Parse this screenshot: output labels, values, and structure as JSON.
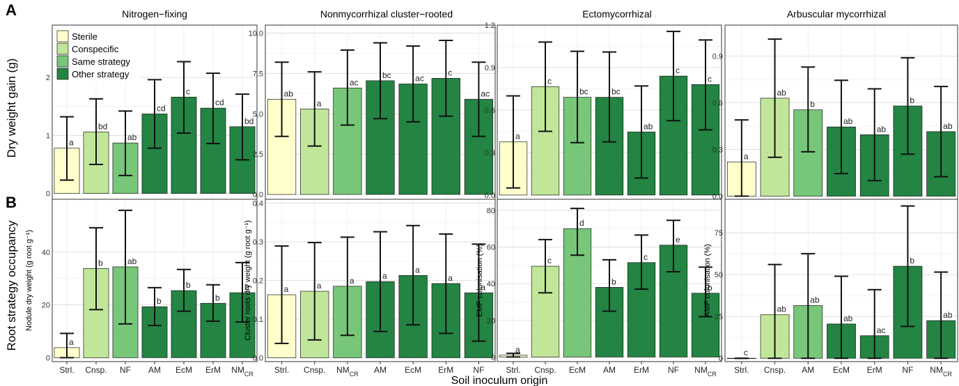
{
  "panel_labels": [
    "A",
    "B"
  ],
  "row_labels": [
    "Dry weight gain (g)",
    "Root strategy occupancy"
  ],
  "x_title": "Soil inoculum origin",
  "legend": {
    "items": [
      {
        "label": "Sterile",
        "color": "#ffffcc"
      },
      {
        "label": "Conspecific",
        "color": "#c2e699"
      },
      {
        "label": "Same strategy",
        "color": "#78c679"
      },
      {
        "label": "Other strategy",
        "color": "#238443"
      }
    ]
  },
  "colors": {
    "Sterile": "#ffffcc",
    "Conspecific": "#c2e699",
    "Same strategy": "#78c679",
    "Other strategy": "#238443"
  },
  "columns": [
    "Nitrogen−fixing",
    "Nonmycorrhizal cluster−rooted",
    "Ectomycorrhizal",
    "Arbuscular mycorrhizal"
  ],
  "chart_data": [
    {
      "type": "bar",
      "panel": "A",
      "title": "Nitrogen−fixing",
      "ylabel": "",
      "categories": [
        "Strl.",
        "Cnsp.",
        "NF",
        "AM",
        "EcM",
        "ErM",
        "NMCR"
      ],
      "values": [
        0.78,
        1.06,
        0.87,
        1.37,
        1.66,
        1.47,
        1.15
      ],
      "err_low": [
        0.23,
        0.5,
        0.31,
        0.78,
        1.04,
        0.86,
        0.58
      ],
      "err_high": [
        1.32,
        1.63,
        1.42,
        1.96,
        2.27,
        2.07,
        1.71
      ],
      "sig": [
        "a",
        "bd",
        "ab",
        "cd",
        "c",
        "cd",
        "bd"
      ],
      "groups": [
        "Sterile",
        "Conspecific",
        "Same strategy",
        "Other strategy",
        "Other strategy",
        "Other strategy",
        "Other strategy"
      ],
      "yticks": [
        "0",
        "1",
        "2"
      ],
      "ytick_values": [
        0,
        1,
        2
      ],
      "ylim": [
        -0.1,
        2.9
      ]
    },
    {
      "type": "bar",
      "panel": "A",
      "title": "Nonmycorrhizal cluster−rooted",
      "ylabel": "",
      "categories": [
        "Strl.",
        "Cnsp.",
        "NMCR",
        "AM",
        "EcM",
        "ErM",
        "NF"
      ],
      "values": [
        5.9,
        5.3,
        6.6,
        7.05,
        6.85,
        7.2,
        5.9
      ],
      "err_low": [
        3.6,
        3.0,
        4.3,
        4.7,
        4.5,
        4.85,
        3.6
      ],
      "err_high": [
        8.2,
        7.6,
        8.95,
        9.4,
        9.2,
        9.55,
        8.2
      ],
      "sig": [
        "ab",
        "a",
        "ac",
        "bc",
        "ac",
        "c",
        "ac"
      ],
      "groups": [
        "Sterile",
        "Conspecific",
        "Same strategy",
        "Other strategy",
        "Other strategy",
        "Other strategy",
        "Other strategy"
      ],
      "yticks": [
        "0.0",
        "2.5",
        "5.0",
        "7.5",
        "10.0"
      ],
      "ytick_values": [
        0,
        2.5,
        5,
        7.5,
        10
      ],
      "ylim": [
        -0.3,
        10.5
      ]
    },
    {
      "type": "bar",
      "panel": "A",
      "title": "Ectomycorrhizal",
      "ylabel": "",
      "categories": [
        "Strl.",
        "Cnsp.",
        "EcM",
        "AM",
        "ErM",
        "NF",
        "NMCR"
      ],
      "values": [
        0.375,
        0.765,
        0.69,
        0.69,
        0.445,
        0.84,
        0.78
      ],
      "err_low": [
        0.05,
        0.45,
        0.37,
        0.375,
        0.12,
        0.525,
        0.46
      ],
      "err_high": [
        0.7,
        1.08,
        1.015,
        1.01,
        0.77,
        1.155,
        1.095
      ],
      "sig": [
        "a",
        "c",
        "bc",
        "bc",
        "ab",
        "c",
        "c"
      ],
      "groups": [
        "Sterile",
        "Conspecific",
        "Same strategy",
        "Other strategy",
        "Other strategy",
        "Other strategy",
        "Other strategy"
      ],
      "yticks": [
        "0.0",
        "0.3",
        "0.6",
        "0.9",
        "1.2"
      ],
      "ytick_values": [
        0,
        0.3,
        0.6,
        0.9,
        1.2
      ],
      "ylim": [
        -0.03,
        1.2
      ]
    },
    {
      "type": "bar",
      "panel": "A",
      "title": "Arbuscular mycorrhizal",
      "ylabel": "",
      "categories": [
        "Strl.",
        "Cnsp.",
        "AM",
        "EcM",
        "ErM",
        "NF",
        "NMCR"
      ],
      "values": [
        0.22,
        0.63,
        0.555,
        0.445,
        0.395,
        0.58,
        0.415
      ],
      "err_low": [
        0.0,
        0.25,
        0.285,
        0.145,
        0.1,
        0.27,
        0.125
      ],
      "err_high": [
        0.49,
        1.01,
        0.83,
        0.745,
        0.69,
        0.89,
        0.705
      ],
      "sig": [
        "a",
        "ab",
        "b",
        "ab",
        "ab",
        "b",
        "ab"
      ],
      "groups": [
        "Sterile",
        "Conspecific",
        "Same strategy",
        "Other strategy",
        "Other strategy",
        "Other strategy",
        "Other strategy"
      ],
      "yticks": [
        "0.0",
        "0.3",
        "0.6",
        "0.9"
      ],
      "ytick_values": [
        0,
        0.3,
        0.6,
        0.9
      ],
      "ylim": [
        -0.02,
        1.1
      ]
    },
    {
      "type": "bar",
      "panel": "B",
      "title": "",
      "ylabel": "Nodule dry weight (g root g⁻¹)",
      "categories": [
        "Strl.",
        "Cnsp.",
        "NF",
        "AM",
        "EcM",
        "ErM",
        "NMCR"
      ],
      "values": [
        3.8,
        33.8,
        34.4,
        19.3,
        25.4,
        20.6,
        24.6
      ],
      "err_low": [
        0.0,
        18.2,
        12.8,
        12.2,
        17.6,
        13.8,
        13.5
      ],
      "err_high": [
        9.2,
        49.2,
        55.8,
        26.5,
        33.4,
        27.6,
        36.0
      ],
      "sig": [
        "a",
        "b",
        "ab",
        "b",
        "b",
        "b",
        "b"
      ],
      "groups": [
        "Sterile",
        "Conspecific",
        "Same strategy",
        "Other strategy",
        "Other strategy",
        "Other strategy",
        "Other strategy"
      ],
      "yticks": [
        "0",
        "20",
        "40"
      ],
      "ytick_values": [
        0,
        20,
        40
      ],
      "ylim": [
        -1.5,
        60
      ]
    },
    {
      "type": "bar",
      "panel": "B",
      "title": "",
      "ylabel": "Cluster roots dry weight (g root g⁻¹)",
      "categories": [
        "Strl.",
        "Cnsp.",
        "NMCR",
        "AM",
        "EcM",
        "ErM",
        "NF"
      ],
      "values": [
        0.163,
        0.172,
        0.185,
        0.197,
        0.213,
        0.192,
        0.168
      ],
      "err_low": [
        0.037,
        0.046,
        0.058,
        0.068,
        0.085,
        0.063,
        0.043
      ],
      "err_high": [
        0.289,
        0.298,
        0.312,
        0.326,
        0.342,
        0.32,
        0.294
      ],
      "sig": [
        "a",
        "a",
        "a",
        "a",
        "a",
        "a",
        "a"
      ],
      "groups": [
        "Sterile",
        "Conspecific",
        "Same strategy",
        "Other strategy",
        "Other strategy",
        "Other strategy",
        "Other strategy"
      ],
      "yticks": [
        "0.0",
        "0.1",
        "0.2",
        "0.3",
        "0.4"
      ],
      "ytick_values": [
        0,
        0.1,
        0.2,
        0.3,
        0.4
      ],
      "ylim": [
        -0.01,
        0.41
      ]
    },
    {
      "type": "bar",
      "panel": "B",
      "title": "",
      "ylabel": "EMF colonisation (%)",
      "categories": [
        "Strl.",
        "Cnsp.",
        "EcM",
        "AM",
        "ErM",
        "NF",
        "NMCR"
      ],
      "values": [
        1.0,
        49.5,
        70.0,
        38.0,
        51.5,
        61.0,
        34.8
      ],
      "err_low": [
        0.0,
        35.0,
        55.5,
        25.0,
        37.0,
        46.5,
        22.0
      ],
      "err_high": [
        2.0,
        64.0,
        81.0,
        53.0,
        66.5,
        74.5,
        49.0
      ],
      "sig": [
        "a",
        "c",
        "d",
        "b",
        "c",
        "e",
        "b"
      ],
      "groups": [
        "Sterile",
        "Conspecific",
        "Same strategy",
        "Other strategy",
        "Other strategy",
        "Other strategy",
        "Other strategy"
      ],
      "yticks": [
        "0",
        "20",
        "40",
        "60",
        "80"
      ],
      "ytick_values": [
        0,
        20,
        40,
        60,
        80
      ],
      "ylim": [
        -2.5,
        86
      ]
    },
    {
      "type": "bar",
      "panel": "B",
      "title": "",
      "ylabel": "AMF colonisation (%)",
      "categories": [
        "Strl.",
        "Cnsp.",
        "AM",
        "EcM",
        "ErM",
        "NF",
        "NMCR"
      ],
      "values": [
        0.0,
        26.0,
        31.5,
        20.5,
        13.5,
        55.0,
        22.5
      ],
      "err_low": [
        0.0,
        0.0,
        0.0,
        0.0,
        0.0,
        19.0,
        0.0
      ],
      "err_high": [
        0.0,
        56.0,
        62.5,
        49.0,
        41.0,
        91.0,
        51.5
      ],
      "sig": [
        "c",
        "ab",
        "ab",
        "ab",
        "ac",
        "b",
        "ab"
      ],
      "groups": [
        "Sterile",
        "Conspecific",
        "Same strategy",
        "Other strategy",
        "Other strategy",
        "Other strategy",
        "Other strategy"
      ],
      "yticks": [
        "0",
        "25",
        "50",
        "75"
      ],
      "ytick_values": [
        0,
        25,
        50,
        75
      ],
      "ylim": [
        -2,
        95
      ]
    }
  ]
}
